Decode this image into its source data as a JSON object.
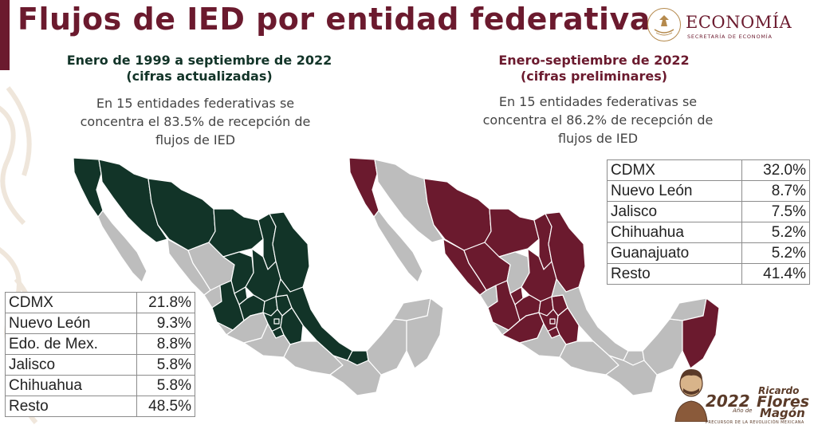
{
  "title": "Flujos de IED por entidad federativa",
  "colors": {
    "brand": "#6b1a2e",
    "cumulative_highlight": "#123428",
    "preliminary_highlight": "#6b1a2e",
    "other_states": "#bdbdbd"
  },
  "logo": {
    "icon": "mexican-coat-of-arms-icon",
    "name": "ECONOMÍA",
    "subtitle": "SECRETARÍA DE ECONOMÍA"
  },
  "left_panel": {
    "heading_line1": "Enero de 1999 a septiembre de 2022",
    "heading_line2": "(cifras actualizadas)",
    "desc_line1": "En 15 entidades federativas se",
    "desc_line2": "concentra el 83.5% de recepción de",
    "desc_line3": "flujos de IED",
    "table": [
      {
        "name": "CDMX",
        "value": "21.8%"
      },
      {
        "name": "Nuevo León",
        "value": "9.3%"
      },
      {
        "name": "Edo. de Mex.",
        "value": "8.8%"
      },
      {
        "name": "Jalisco",
        "value": "5.8%"
      },
      {
        "name": "Chihuahua",
        "value": "5.8%"
      },
      {
        "name": "Resto",
        "value": "48.5%"
      }
    ]
  },
  "right_panel": {
    "heading_line1": "Enero-septiembre de 2022",
    "heading_line2": "(cifras preliminares)",
    "desc_line1": "En 15 entidades federativas se",
    "desc_line2": "concentra el 86.2% de recepción de",
    "desc_line3": "flujos de IED",
    "table": [
      {
        "name": "CDMX",
        "value": "32.0%"
      },
      {
        "name": "Nuevo León",
        "value": "8.7%"
      },
      {
        "name": "Jalisco",
        "value": "7.5%"
      },
      {
        "name": "Chihuahua",
        "value": "5.2%"
      },
      {
        "name": "Guanajuato",
        "value": "5.2%"
      },
      {
        "name": "Resto",
        "value": "41.4%"
      }
    ]
  },
  "badge": {
    "year": "2022",
    "anio": "Año de",
    "name1": "Ricardo",
    "name2": "Flores",
    "name3": "Magón",
    "tagline": "PRECURSOR DE LA REVOLUCIÓN MEXICANA"
  }
}
